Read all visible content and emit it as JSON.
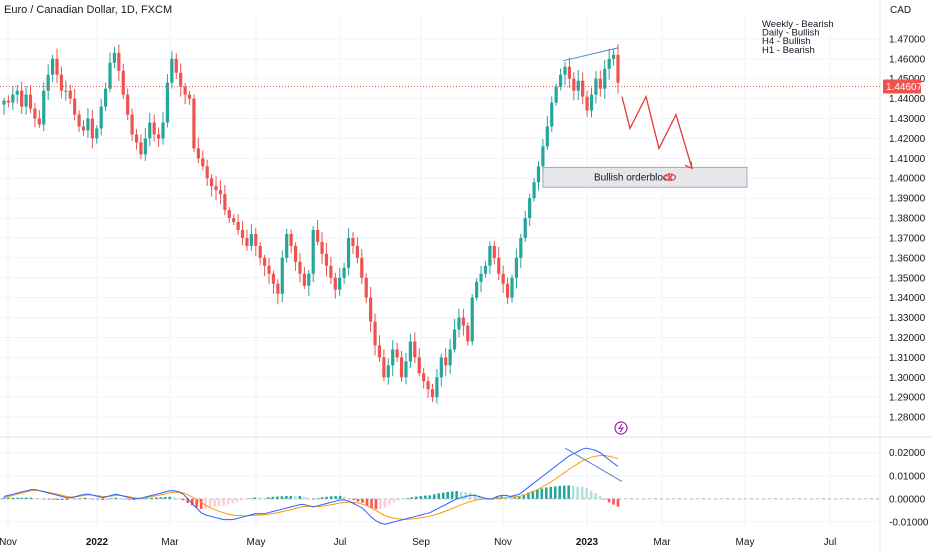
{
  "chart_data": {
    "type": "candlestick",
    "title": "Euro / Canadian Dollar, 1D, FXCM",
    "currency_label": "CAD",
    "ylim": [
      1.2715,
      1.4785
    ],
    "y_ticks": [
      "1.47000",
      "1.46000",
      "1.45000",
      "1.44000",
      "1.43000",
      "1.42000",
      "1.41000",
      "1.40000",
      "1.39000",
      "1.38000",
      "1.37000",
      "1.36000",
      "1.35000",
      "1.34000",
      "1.33000",
      "1.32000",
      "1.31000",
      "1.30000",
      "1.29000",
      "1.28000"
    ],
    "x_ticks": [
      "Nov",
      "2022",
      "Mar",
      "May",
      "Jul",
      "Sep",
      "Nov",
      "2023",
      "Mar",
      "May",
      "Jul"
    ],
    "last_price": "1.44607",
    "last_price_value": 1.44607,
    "up_color": "#26a69a",
    "down_color": "#ef5350",
    "price_series": [
      1.439,
      1.438,
      1.442,
      1.444,
      1.436,
      1.442,
      1.435,
      1.43,
      1.427,
      1.444,
      1.452,
      1.46,
      1.452,
      1.444,
      1.444,
      1.44,
      1.432,
      1.426,
      1.424,
      1.43,
      1.42,
      1.425,
      1.436,
      1.445,
      1.458,
      1.463,
      1.454,
      1.442,
      1.432,
      1.422,
      1.418,
      1.412,
      1.42,
      1.428,
      1.422,
      1.42,
      1.428,
      1.448,
      1.46,
      1.453,
      1.446,
      1.442,
      1.44,
      1.415,
      1.41,
      1.406,
      1.4,
      1.396,
      1.394,
      1.392,
      1.384,
      1.38,
      1.378,
      1.374,
      1.37,
      1.366,
      1.372,
      1.366,
      1.36,
      1.356,
      1.352,
      1.347,
      1.342,
      1.36,
      1.372,
      1.366,
      1.358,
      1.352,
      1.346,
      1.352,
      1.374,
      1.368,
      1.362,
      1.356,
      1.35,
      1.344,
      1.35,
      1.355,
      1.37,
      1.366,
      1.36,
      1.35,
      1.34,
      1.328,
      1.316,
      1.31,
      1.3,
      1.306,
      1.314,
      1.31,
      1.3,
      1.308,
      1.318,
      1.31,
      1.302,
      1.298,
      1.294,
      1.29,
      1.3,
      1.31,
      1.306,
      1.314,
      1.324,
      1.33,
      1.326,
      1.318,
      1.34,
      1.348,
      1.352,
      1.356,
      1.366,
      1.36,
      1.352,
      1.347,
      1.34,
      1.35,
      1.36,
      1.37,
      1.38,
      1.39,
      1.398,
      1.406,
      1.416,
      1.426,
      1.438,
      1.446,
      1.452,
      1.456,
      1.45,
      1.444,
      1.449,
      1.441,
      1.434,
      1.442,
      1.45,
      1.445,
      1.455,
      1.46,
      1.462,
      1.448
    ],
    "forecast_path": [
      1.441,
      1.425,
      1.441,
      1.415,
      1.432,
      1.405
    ],
    "order_block": {
      "label": "Bullish orderblock",
      "top": 1.4055,
      "bottom": 1.3955
    },
    "trend_line": {
      "from": 1.459,
      "to": 1.4655
    },
    "notes": [
      "Weekly - Bearish",
      "Daily - Bullish",
      "H4 - Bullish",
      "H1 - Bearish"
    ],
    "macd": {
      "y_ticks": [
        "0.02000",
        "0.01000",
        "0.00000",
        "-0.01000"
      ],
      "ylim": [
        -0.0135,
        0.0255
      ],
      "macd_line": [
        0.001,
        0.0015,
        0.002,
        0.0025,
        0.003,
        0.0035,
        0.004,
        0.004,
        0.0035,
        0.003,
        0.0025,
        0.002,
        0.0015,
        0.001,
        0.0005,
        0.0005,
        0.001,
        0.0015,
        0.002,
        0.002,
        0.0015,
        0.001,
        0.0005,
        0.001,
        0.0015,
        0.002,
        0.0015,
        0.001,
        0.0005,
        0,
        0,
        0.0005,
        0.001,
        0.0015,
        0.002,
        0.0025,
        0.003,
        0.0035,
        0.0035,
        0.003,
        0.002,
        0,
        -0.002,
        -0.004,
        -0.006,
        -0.007,
        -0.0075,
        -0.008,
        -0.0085,
        -0.009,
        -0.009,
        -0.009,
        -0.0085,
        -0.008,
        -0.0075,
        -0.007,
        -0.0065,
        -0.0065,
        -0.0065,
        -0.006,
        -0.0055,
        -0.005,
        -0.0045,
        -0.004,
        -0.0035,
        -0.003,
        -0.0025,
        -0.0025,
        -0.003,
        -0.0035,
        -0.003,
        -0.0025,
        -0.002,
        -0.0015,
        -0.001,
        -0.0005,
        -0.0005,
        -0.001,
        -0.002,
        -0.003,
        -0.004,
        -0.006,
        -0.008,
        -0.0095,
        -0.0105,
        -0.011,
        -0.0105,
        -0.01,
        -0.0095,
        -0.009,
        -0.0085,
        -0.008,
        -0.0075,
        -0.007,
        -0.0065,
        -0.006,
        -0.005,
        -0.004,
        -0.003,
        -0.002,
        -0.001,
        0,
        0.0005,
        0.001,
        0.0015,
        0.0015,
        0.001,
        0.0005,
        0,
        0,
        0.001,
        0.0015,
        0.0015,
        0.001,
        0.0015,
        0.002,
        0.0035,
        0.005,
        0.0065,
        0.008,
        0.0095,
        0.011,
        0.0125,
        0.014,
        0.0155,
        0.017,
        0.0185,
        0.0195,
        0.0205,
        0.0215,
        0.022,
        0.0215,
        0.021,
        0.02,
        0.0185,
        0.017,
        0.0155,
        0.014
      ],
      "signal_line": [
        0.0005,
        0.001,
        0.0015,
        0.002,
        0.0025,
        0.003,
        0.0035,
        0.0037,
        0.0035,
        0.0032,
        0.0028,
        0.0024,
        0.002,
        0.0015,
        0.001,
        0.0008,
        0.0009,
        0.0012,
        0.0015,
        0.0017,
        0.0016,
        0.0013,
        0.001,
        0.001,
        0.0012,
        0.0015,
        0.0015,
        0.0012,
        0.0009,
        0.0005,
        0.0003,
        0.0004,
        0.0007,
        0.001,
        0.0014,
        0.0018,
        0.0022,
        0.0026,
        0.0029,
        0.0029,
        0.0026,
        0.0018,
        0.0008,
        -0.0004,
        -0.0016,
        -0.0028,
        -0.0038,
        -0.0046,
        -0.0054,
        -0.006,
        -0.0066,
        -0.007,
        -0.0072,
        -0.0073,
        -0.0073,
        -0.0072,
        -0.0071,
        -0.007,
        -0.0069,
        -0.0067,
        -0.0064,
        -0.006,
        -0.0056,
        -0.0052,
        -0.0047,
        -0.0042,
        -0.0037,
        -0.0033,
        -0.0032,
        -0.0033,
        -0.0033,
        -0.0032,
        -0.0029,
        -0.0026,
        -0.0022,
        -0.0018,
        -0.0015,
        -0.0014,
        -0.0015,
        -0.0018,
        -0.0023,
        -0.003,
        -0.004,
        -0.0051,
        -0.0062,
        -0.0072,
        -0.0079,
        -0.0084,
        -0.0087,
        -0.0088,
        -0.0088,
        -0.0087,
        -0.0085,
        -0.0082,
        -0.0079,
        -0.0075,
        -0.007,
        -0.0064,
        -0.0057,
        -0.005,
        -0.0042,
        -0.0034,
        -0.0026,
        -0.0019,
        -0.0012,
        -0.0007,
        -0.0003,
        -0.0001,
        -0.0001,
        -0.0001,
        0.0001,
        0.0004,
        0.0006,
        0.0007,
        0.0009,
        0.0011,
        0.0016,
        0.0023,
        0.0031,
        0.004,
        0.005,
        0.0061,
        0.0073,
        0.0086,
        0.0099,
        0.0113,
        0.0127,
        0.014,
        0.0152,
        0.0163,
        0.0173,
        0.018,
        0.0185,
        0.0188,
        0.0188,
        0.0185,
        0.018,
        0.0174
      ]
    }
  }
}
